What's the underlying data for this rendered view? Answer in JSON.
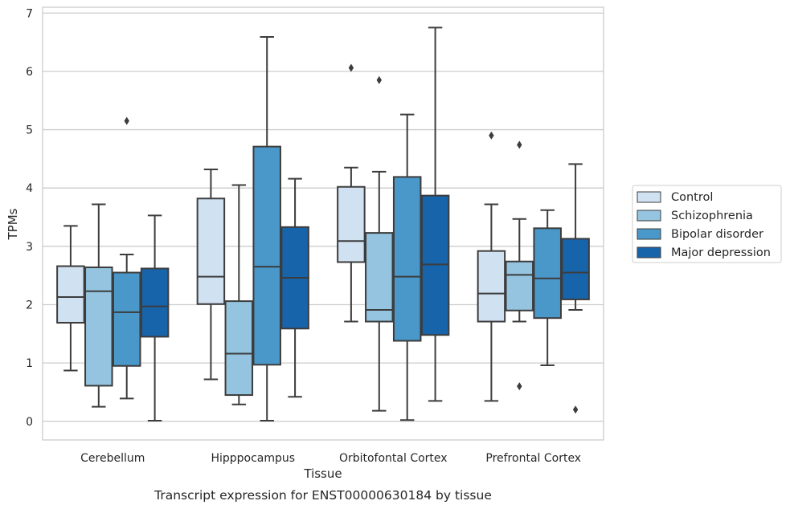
{
  "chart_data": {
    "type": "box",
    "caption": "Transcript expression for ENST00000630184 by tissue",
    "xlabel": "Tissue",
    "ylabel": "TPMs",
    "ylim": [
      -0.32,
      7.1
    ],
    "yticks": [
      "0",
      "1",
      "2",
      "3",
      "4",
      "5",
      "6",
      "7"
    ],
    "grid": "horizontal",
    "legend_position": "right",
    "categories": [
      "Cerebellum",
      "Hipppocampus",
      "Orbitofontal Cortex",
      "Prefrontal Cortex"
    ],
    "series": [
      {
        "name": "Control",
        "color": "#d0e1f2",
        "boxes": [
          {
            "whislo": 0.87,
            "q1": 1.69,
            "med": 2.13,
            "q3": 2.66,
            "whishi": 3.35,
            "fliers": []
          },
          {
            "whislo": 0.72,
            "q1": 2.01,
            "med": 2.48,
            "q3": 3.82,
            "whishi": 4.32,
            "fliers": []
          },
          {
            "whislo": 1.71,
            "q1": 2.73,
            "med": 3.09,
            "q3": 4.02,
            "whishi": 4.35,
            "fliers": [
              6.06
            ]
          },
          {
            "whislo": 0.35,
            "q1": 1.71,
            "med": 2.19,
            "q3": 2.92,
            "whishi": 3.72,
            "fliers": [
              4.9
            ]
          }
        ]
      },
      {
        "name": "Schizophrenia",
        "color": "#94c4df",
        "boxes": [
          {
            "whislo": 0.25,
            "q1": 0.61,
            "med": 2.23,
            "q3": 2.64,
            "whishi": 3.72,
            "fliers": []
          },
          {
            "whislo": 0.29,
            "q1": 0.45,
            "med": 1.16,
            "q3": 2.06,
            "whishi": 4.05,
            "fliers": []
          },
          {
            "whislo": 0.18,
            "q1": 1.71,
            "med": 1.91,
            "q3": 3.23,
            "whishi": 4.28,
            "fliers": [
              5.85
            ]
          },
          {
            "whislo": 1.71,
            "q1": 1.9,
            "med": 2.51,
            "q3": 2.74,
            "whishi": 3.47,
            "fliers": [
              4.74,
              0.6
            ]
          }
        ]
      },
      {
        "name": "Bipolar disorder",
        "color": "#4a98c9",
        "boxes": [
          {
            "whislo": 0.39,
            "q1": 0.95,
            "med": 1.87,
            "q3": 2.55,
            "whishi": 2.86,
            "fliers": [
              5.15
            ]
          },
          {
            "whislo": 0.01,
            "q1": 0.97,
            "med": 2.65,
            "q3": 4.71,
            "whishi": 6.59,
            "fliers": []
          },
          {
            "whislo": 0.02,
            "q1": 1.38,
            "med": 2.48,
            "q3": 4.19,
            "whishi": 5.26,
            "fliers": []
          },
          {
            "whislo": 0.96,
            "q1": 1.77,
            "med": 2.45,
            "q3": 3.31,
            "whishi": 3.62,
            "fliers": []
          }
        ]
      },
      {
        "name": "Major depression",
        "color": "#1764ab",
        "boxes": [
          {
            "whislo": 0.01,
            "q1": 1.45,
            "med": 1.97,
            "q3": 2.62,
            "whishi": 3.53,
            "fliers": []
          },
          {
            "whislo": 0.42,
            "q1": 1.59,
            "med": 2.46,
            "q3": 3.33,
            "whishi": 4.16,
            "fliers": []
          },
          {
            "whislo": 0.35,
            "q1": 1.48,
            "med": 2.69,
            "q3": 3.87,
            "whishi": 6.75,
            "fliers": []
          },
          {
            "whislo": 1.91,
            "q1": 2.09,
            "med": 2.55,
            "q3": 3.13,
            "whishi": 4.41,
            "fliers": [
              0.2
            ]
          }
        ]
      }
    ]
  }
}
